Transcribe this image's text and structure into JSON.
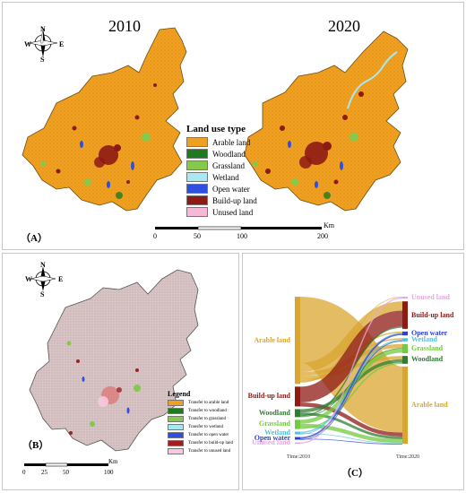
{
  "panel_a": {
    "label": "（A）",
    "year_left": "2010",
    "year_right": "2020",
    "legend_title": "Land use type",
    "legend": [
      {
        "label": "Arable land",
        "color": "#f0a020"
      },
      {
        "label": "Woodland",
        "color": "#1f7a1f"
      },
      {
        "label": "Grassland",
        "color": "#86c94a"
      },
      {
        "label": "Wetland",
        "color": "#a8e8f0"
      },
      {
        "label": "Open water",
        "color": "#2f4fe0"
      },
      {
        "label": "Build-up land",
        "color": "#8e1a14"
      },
      {
        "label": "Unused land",
        "color": "#f7b8d8"
      }
    ],
    "scalebar": {
      "ticks": [
        "0",
        "50",
        "100",
        "200"
      ],
      "unit": "Km"
    },
    "compass": {
      "n": "N",
      "s": "S",
      "e": "E",
      "w": "W"
    }
  },
  "panel_b": {
    "label": "（B）",
    "legend_title": "Legend",
    "legend": [
      {
        "label": "Transfer to arable land",
        "color": "#f0a020"
      },
      {
        "label": "Transfer to woodland",
        "color": "#1f7a1f"
      },
      {
        "label": "Transfer to grassland",
        "color": "#86c94a"
      },
      {
        "label": "Transfer to wetland",
        "color": "#a8e8f0"
      },
      {
        "label": "Transfer to open water",
        "color": "#2f4fe0"
      },
      {
        "label": "Transfer to build-up land",
        "color": "#a02020"
      },
      {
        "label": "Transfer to unused land",
        "color": "#f7c8e0"
      }
    ],
    "scalebar": {
      "ticks": [
        "0",
        "25",
        "50",
        "100"
      ],
      "unit": "Km"
    },
    "compass": {
      "n": "N",
      "s": "S",
      "e": "E",
      "w": "W"
    }
  },
  "panel_c": {
    "label": "（C）",
    "time_left": "Time:2010",
    "time_right": "Time:2020",
    "left_nodes": [
      {
        "label": "Arable land",
        "color": "#d9a630",
        "value": 0.66
      },
      {
        "label": "Build-up land",
        "color": "#8e1a14",
        "value": 0.15
      },
      {
        "label": "Woodland",
        "color": "#2e7d32",
        "value": 0.06
      },
      {
        "label": "Grassland",
        "color": "#74c940",
        "value": 0.07
      },
      {
        "label": "Wetland",
        "color": "#4fc3e0",
        "value": 0.02
      },
      {
        "label": "Open water",
        "color": "#2f3fd0",
        "value": 0.02
      },
      {
        "label": "Unused land",
        "color": "#e8a8e0",
        "value": 0.01
      }
    ],
    "right_nodes": [
      {
        "label": "Unused land",
        "color": "#e8a8e0",
        "value": 0.015
      },
      {
        "label": "Build-up land",
        "color": "#8e1a14",
        "value": 0.21
      },
      {
        "label": "Open water",
        "color": "#2f3fd0",
        "value": 0.03
      },
      {
        "label": "Wetland",
        "color": "#4fc3e0",
        "value": 0.025
      },
      {
        "label": "Grassland",
        "color": "#74c940",
        "value": 0.07
      },
      {
        "label": "Woodland",
        "color": "#2e7d32",
        "value": 0.06
      },
      {
        "label": "Arable land",
        "color": "#d9a630",
        "value": 0.59
      }
    ],
    "flows": [
      {
        "from": 0,
        "to": 6,
        "value": 0.5
      },
      {
        "from": 0,
        "to": 1,
        "value": 0.07
      },
      {
        "from": 0,
        "to": 4,
        "value": 0.03
      },
      {
        "from": 0,
        "to": 5,
        "value": 0.025
      },
      {
        "from": 0,
        "to": 3,
        "value": 0.01
      },
      {
        "from": 0,
        "to": 2,
        "value": 0.01
      },
      {
        "from": 0,
        "to": 0,
        "value": 0.005
      },
      {
        "from": 1,
        "to": 1,
        "value": 0.12
      },
      {
        "from": 1,
        "to": 6,
        "value": 0.03
      },
      {
        "from": 2,
        "to": 5,
        "value": 0.025
      },
      {
        "from": 2,
        "to": 6,
        "value": 0.02
      },
      {
        "from": 2,
        "to": 1,
        "value": 0.01
      },
      {
        "from": 2,
        "to": 4,
        "value": 0.005
      },
      {
        "from": 3,
        "to": 4,
        "value": 0.03
      },
      {
        "from": 3,
        "to": 6,
        "value": 0.03
      },
      {
        "from": 3,
        "to": 5,
        "value": 0.01
      },
      {
        "from": 4,
        "to": 3,
        "value": 0.01
      },
      {
        "from": 4,
        "to": 6,
        "value": 0.005
      },
      {
        "from": 4,
        "to": 2,
        "value": 0.005
      },
      {
        "from": 5,
        "to": 2,
        "value": 0.012
      },
      {
        "from": 5,
        "to": 6,
        "value": 0.005
      },
      {
        "from": 5,
        "to": 3,
        "value": 0.003
      },
      {
        "from": 6,
        "to": 0,
        "value": 0.01
      }
    ]
  }
}
